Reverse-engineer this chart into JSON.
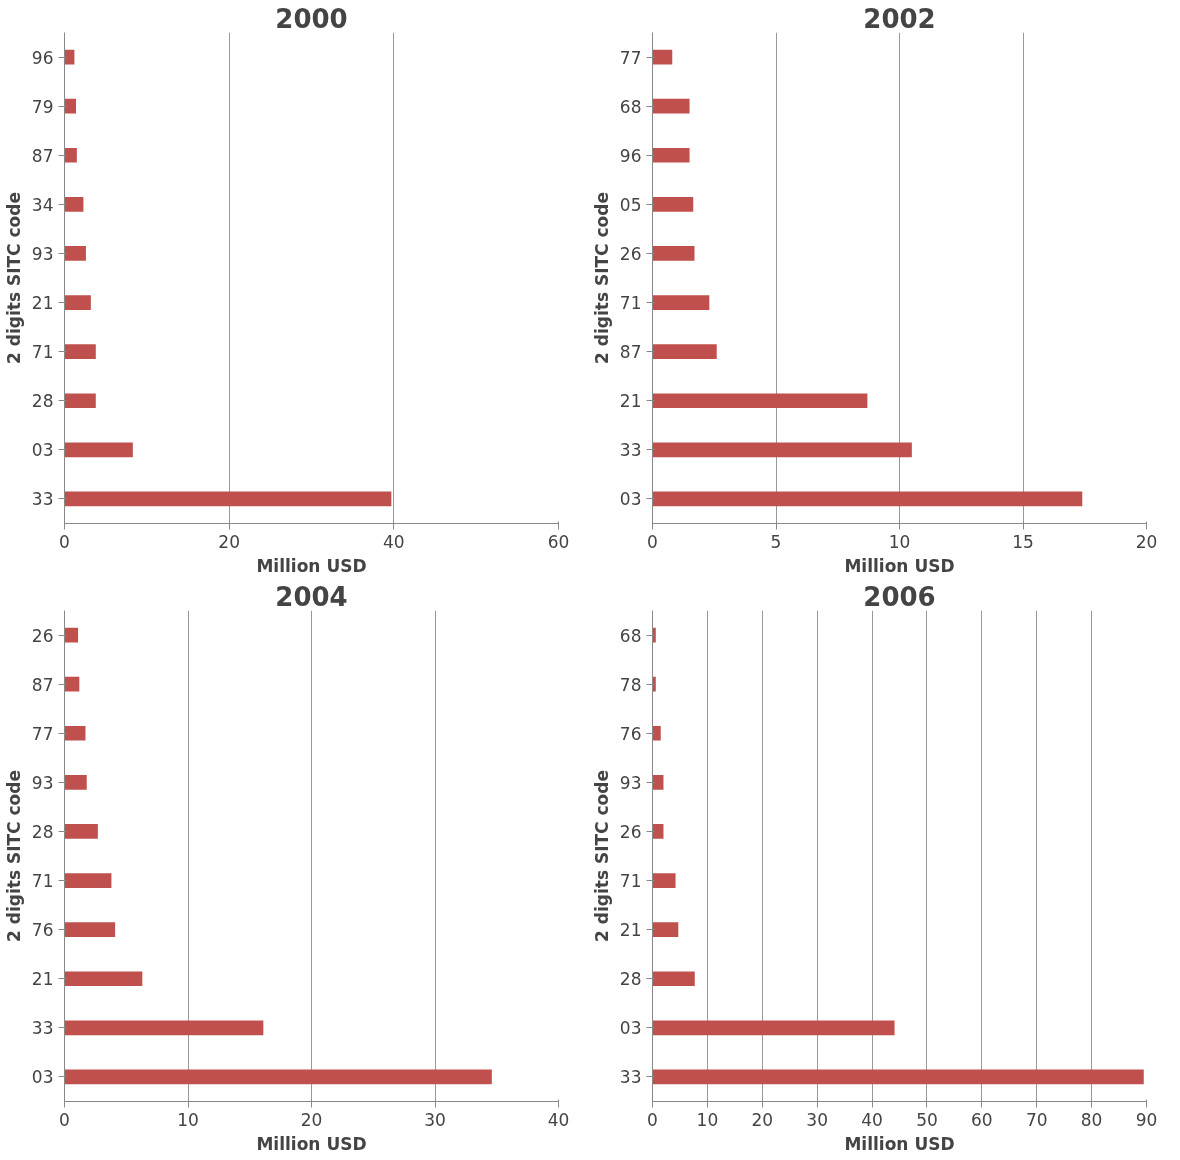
{
  "chart_data": [
    {
      "type": "bar",
      "orientation": "horizontal",
      "title": "2000",
      "xlabel": "Million USD",
      "ylabel": "2 digits SITC code",
      "categories": [
        "96",
        "79",
        "87",
        "34",
        "93",
        "21",
        "71",
        "28",
        "03",
        "33"
      ],
      "values": [
        1.2,
        1.4,
        1.5,
        2.3,
        2.6,
        3.2,
        3.8,
        3.8,
        8.3,
        39.7
      ],
      "color": "#c0504d",
      "xlim": [
        0,
        60
      ],
      "xticks": [
        0,
        20,
        40,
        60
      ],
      "grid": "x"
    },
    {
      "type": "bar",
      "orientation": "horizontal",
      "title": "2002",
      "xlabel": "Million USD",
      "ylabel": "2 digits SITC code",
      "categories": [
        "77",
        "68",
        "96",
        "05",
        "26",
        "71",
        "87",
        "21",
        "33",
        "03"
      ],
      "values": [
        0.8,
        1.5,
        1.5,
        1.65,
        1.7,
        2.3,
        2.6,
        8.7,
        10.5,
        17.4
      ],
      "color": "#c0504d",
      "xlim": [
        0,
        20
      ],
      "xticks": [
        0,
        5,
        10,
        15,
        20
      ],
      "grid": "x"
    },
    {
      "type": "bar",
      "orientation": "horizontal",
      "title": "2004",
      "xlabel": "Million USD",
      "ylabel": "2 digits SITC code",
      "categories": [
        "26",
        "87",
        "77",
        "93",
        "28",
        "71",
        "76",
        "21",
        "33",
        "03"
      ],
      "values": [
        1.1,
        1.2,
        1.7,
        1.8,
        2.7,
        3.8,
        4.1,
        6.3,
        16.1,
        34.6
      ],
      "color": "#c0504d",
      "xlim": [
        0,
        40
      ],
      "xticks": [
        0,
        10,
        20,
        30,
        40
      ],
      "grid": "x"
    },
    {
      "type": "bar",
      "orientation": "horizontal",
      "title": "2006",
      "xlabel": "Million USD",
      "ylabel": "2 digits SITC code",
      "categories": [
        "68",
        "78",
        "76",
        "93",
        "26",
        "71",
        "21",
        "28",
        "03",
        "33"
      ],
      "values": [
        0.6,
        0.6,
        1.5,
        2.0,
        2.0,
        4.2,
        4.7,
        7.7,
        44.1,
        89.5
      ],
      "color": "#c0504d",
      "xlim": [
        0,
        90
      ],
      "xticks": [
        0,
        10,
        20,
        30,
        40,
        50,
        60,
        70,
        80,
        90
      ],
      "grid": "x"
    }
  ]
}
